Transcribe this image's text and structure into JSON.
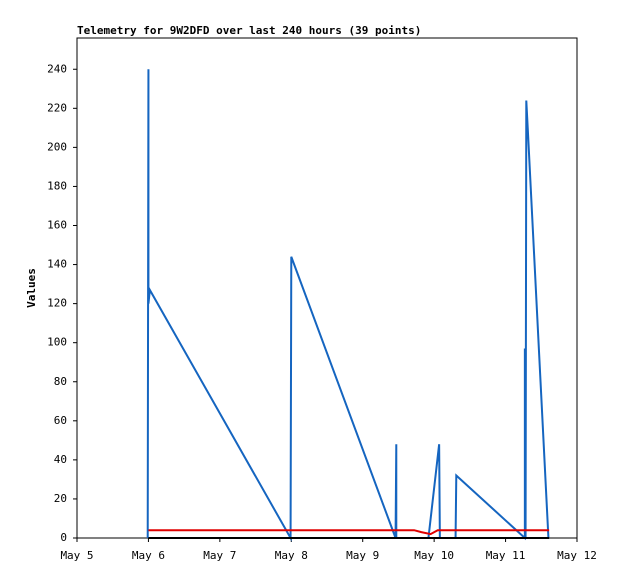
{
  "chart_data": {
    "type": "line",
    "title": "Telemetry for 9W2DFD over last 240 hours (39 points)",
    "y_label": "Values",
    "xlim": [
      5,
      12
    ],
    "xticks": [
      {
        "value": 5,
        "label": "May 5"
      },
      {
        "value": 6,
        "label": "May 6"
      },
      {
        "value": 7,
        "label": "May 7"
      },
      {
        "value": 8,
        "label": "May 8"
      },
      {
        "value": 9,
        "label": "May 9"
      },
      {
        "value": 10,
        "label": "May 10"
      },
      {
        "value": 11,
        "label": "May 11"
      },
      {
        "value": 12,
        "label": "May 12"
      }
    ],
    "ylim": [
      0,
      256
    ],
    "yticks": [
      0,
      20,
      40,
      60,
      80,
      100,
      120,
      140,
      160,
      180,
      200,
      220,
      240
    ],
    "series": [
      {
        "color": "#1565c0",
        "x": [
          5.99,
          6.0,
          6.0,
          6.02,
          7.99,
          8.0,
          9.46,
          9.47,
          9.47,
          9.92,
          10.07,
          10.08,
          10.3,
          10.31,
          11.27,
          11.27,
          11.28,
          11.29,
          11.31,
          11.6
        ],
        "values": [
          0,
          240,
          120,
          127,
          0,
          144,
          0,
          48,
          0,
          0,
          48,
          0,
          0,
          32,
          0,
          97,
          0,
          224,
          210,
          0
        ]
      },
      {
        "color": "#e00000",
        "x": [
          6.0,
          9.72,
          9.82,
          9.95,
          10.05,
          11.61
        ],
        "values": [
          4,
          4,
          3,
          2,
          4,
          4
        ]
      },
      {
        "color": "#000000",
        "x": [
          6.0,
          11.61
        ],
        "values": [
          0,
          0
        ]
      }
    ]
  }
}
